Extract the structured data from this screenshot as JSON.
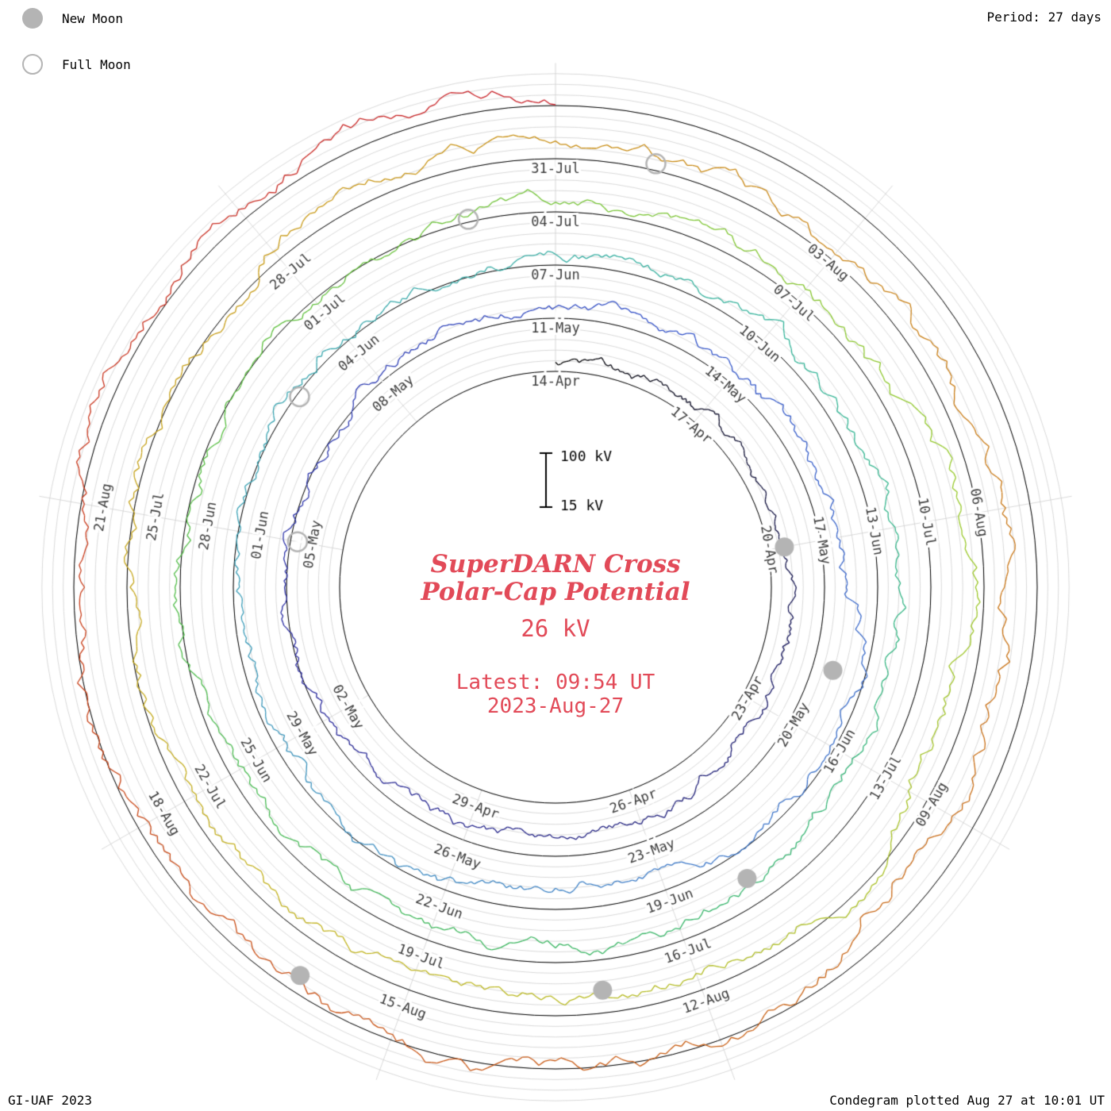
{
  "page": {
    "legend": {
      "new_moon": "New Moon",
      "full_moon": "Full Moon"
    },
    "period_label": "Period: 27 days",
    "footer_left": "GI-UAF 2023",
    "footer_right": "Condegram plotted Aug 27 at 10:01 UT",
    "center": {
      "title_line1": "SuperDARN Cross",
      "title_line2": "Polar-Cap Potential",
      "value": "26 kV",
      "latest_line1": "Latest: 09:54 UT",
      "latest_line2": "2023-Aug-27"
    },
    "accent_red": "#e24a58",
    "moon_gray": "#b4b4b4"
  },
  "chart_data": {
    "type": "line",
    "variant": "condegram-spiral",
    "title": "SuperDARN Cross Polar-Cap Potential",
    "units": "kV",
    "current_value_kv": 26,
    "period_days": 27,
    "total_days": 135,
    "revolutions": 5,
    "start_date_label": "14-Apr",
    "end_date_label": "2023-Aug-27",
    "value_range_kv": [
      15,
      110
    ],
    "scale_bar": {
      "top_label": "100 kV",
      "bottom_label": "15 kV",
      "min_kv": 15,
      "max_kv": 100
    },
    "grid_sectors": 9,
    "ring_subdivisions": 5,
    "date_labels": [
      {
        "label": "14-Apr",
        "day": 0
      },
      {
        "label": "17-Apr",
        "day": 3
      },
      {
        "label": "20-Apr",
        "day": 6
      },
      {
        "label": "23-Apr",
        "day": 9
      },
      {
        "label": "26-Apr",
        "day": 12
      },
      {
        "label": "29-Apr",
        "day": 15
      },
      {
        "label": "02-May",
        "day": 18
      },
      {
        "label": "05-May",
        "day": 21
      },
      {
        "label": "08-May",
        "day": 24
      },
      {
        "label": "11-May",
        "day": 27
      },
      {
        "label": "14-May",
        "day": 30
      },
      {
        "label": "17-May",
        "day": 33
      },
      {
        "label": "20-May",
        "day": 36
      },
      {
        "label": "23-May",
        "day": 39
      },
      {
        "label": "26-May",
        "day": 42
      },
      {
        "label": "29-May",
        "day": 45
      },
      {
        "label": "01-Jun",
        "day": 48
      },
      {
        "label": "04-Jun",
        "day": 51
      },
      {
        "label": "07-Jun",
        "day": 54
      },
      {
        "label": "10-Jun",
        "day": 57
      },
      {
        "label": "13-Jun",
        "day": 60
      },
      {
        "label": "16-Jun",
        "day": 63
      },
      {
        "label": "19-Jun",
        "day": 66
      },
      {
        "label": "22-Jun",
        "day": 69
      },
      {
        "label": "25-Jun",
        "day": 72
      },
      {
        "label": "28-Jun",
        "day": 75
      },
      {
        "label": "01-Jul",
        "day": 78
      },
      {
        "label": "04-Jul",
        "day": 81
      },
      {
        "label": "07-Jul",
        "day": 84
      },
      {
        "label": "10-Jul",
        "day": 87
      },
      {
        "label": "13-Jul",
        "day": 90
      },
      {
        "label": "16-Jul",
        "day": 93
      },
      {
        "label": "19-Jul",
        "day": 96
      },
      {
        "label": "22-Jul",
        "day": 99
      },
      {
        "label": "25-Jul",
        "day": 102
      },
      {
        "label": "28-Jul",
        "day": 105
      },
      {
        "label": "31-Jul",
        "day": 108
      },
      {
        "label": "03-Aug",
        "day": 111
      },
      {
        "label": "06-Aug",
        "day": 114
      },
      {
        "label": "09-Aug",
        "day": 117
      },
      {
        "label": "12-Aug",
        "day": 120
      },
      {
        "label": "15-Aug",
        "day": 123
      },
      {
        "label": "18-Aug",
        "day": 126
      },
      {
        "label": "21-Aug",
        "day": 129
      }
    ],
    "new_moon_days_from_start": [
      6,
      35,
      65,
      94,
      124
    ],
    "full_moon_days_from_start": [
      21,
      50,
      80,
      109
    ],
    "trace_color_stops": [
      "#000000",
      "#1a1a70",
      "#2a2aa0",
      "#3050c8",
      "#3c78c8",
      "#38a0b4",
      "#32b496",
      "#36b45e",
      "#5abe3c",
      "#96c828",
      "#c0b41e",
      "#c89614",
      "#c87014",
      "#c84a14",
      "#c81e28"
    ],
    "grid_color": "#cfcfcf",
    "ring_color": "#000000",
    "label_color": "#3c3c3c"
  }
}
